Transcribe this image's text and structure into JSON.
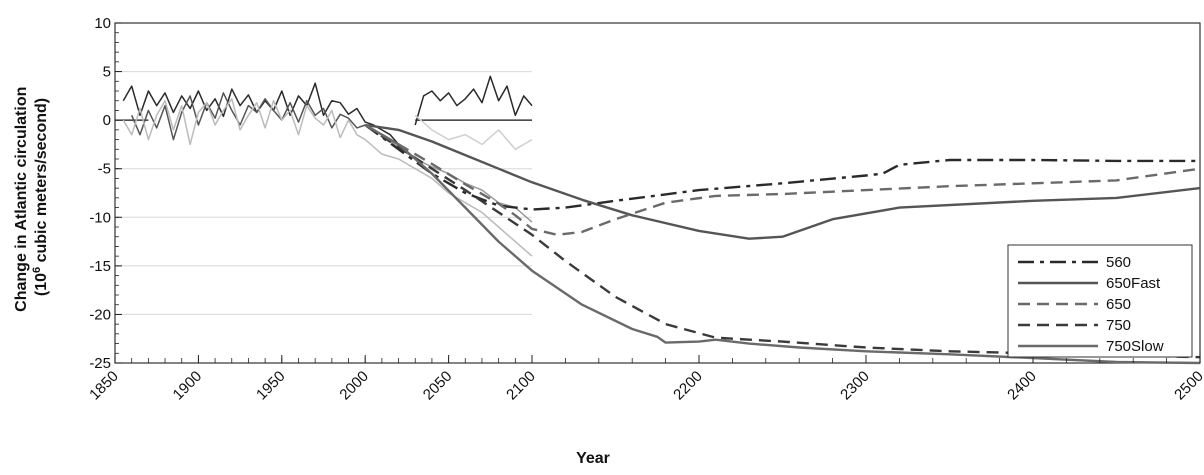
{
  "chart_data": {
    "type": "line",
    "title": "",
    "xlabel": "Year",
    "ylabel_line1": "Change in Atlantic circulation",
    "ylabel_line2": "(10",
    "ylabel_sup": "6",
    "ylabel_line2_rest": " cubic meters/second)",
    "xlim": [
      1850,
      2500
    ],
    "ylim": [
      -25,
      10
    ],
    "x_axis_breakpoint": {
      "from": 2100,
      "note": "x axis is compressed after 2100"
    },
    "x_ticks": [
      "1850",
      "1900",
      "1950",
      "2000",
      "2050",
      "2100",
      "2200",
      "2300",
      "2400",
      "2500"
    ],
    "y_ticks": [
      "10",
      "5",
      "0",
      "-5",
      "-10",
      "-15",
      "-20",
      "-25"
    ],
    "grid": "horizontal",
    "legend_position": "right",
    "series": [
      {
        "name": "560",
        "dash": "long-dash-dot",
        "color": "#2a2a2a",
        "x": [
          2000,
          2020,
          2040,
          2060,
          2080,
          2100,
          2120,
          2150,
          2200,
          2250,
          2300,
          2310,
          2320,
          2350,
          2400,
          2450,
          2500
        ],
        "y": [
          -0.5,
          -3.0,
          -5.5,
          -7.5,
          -8.8,
          -9.2,
          -9.0,
          -8.3,
          -7.2,
          -6.5,
          -5.7,
          -5.5,
          -4.6,
          -4.1,
          -4.1,
          -4.2,
          -4.2
        ]
      },
      {
        "name": "650Fast",
        "dash": "solid",
        "color": "#555555",
        "x": [
          2000,
          2020,
          2040,
          2060,
          2080,
          2100,
          2130,
          2160,
          2200,
          2230,
          2250,
          2280,
          2320,
          2400,
          2450,
          2500
        ],
        "y": [
          -0.5,
          -1.0,
          -2.2,
          -3.6,
          -5.0,
          -6.4,
          -8.2,
          -9.8,
          -11.4,
          -12.2,
          -12.0,
          -10.2,
          -9.0,
          -8.3,
          -8.0,
          -7.0
        ]
      },
      {
        "name": "650",
        "dash": "dash",
        "color": "#6a6a6a",
        "x": [
          2000,
          2020,
          2040,
          2060,
          2080,
          2090,
          2100,
          2115,
          2130,
          2150,
          2180,
          2210,
          2250,
          2300,
          2350,
          2400,
          2450,
          2500
        ],
        "y": [
          -0.5,
          -2.5,
          -4.5,
          -6.6,
          -8.6,
          -9.8,
          -11.2,
          -11.8,
          -11.5,
          -10.2,
          -8.5,
          -7.8,
          -7.6,
          -7.2,
          -6.8,
          -6.5,
          -6.2,
          -5.0
        ]
      },
      {
        "name": "750",
        "dash": "dash",
        "color": "#3a3a3a",
        "x": [
          2000,
          2020,
          2040,
          2060,
          2080,
          2100,
          2120,
          2150,
          2180,
          2210,
          2250,
          2300,
          2350,
          2400,
          2450,
          2500
        ],
        "y": [
          -0.5,
          -2.8,
          -5.0,
          -7.2,
          -9.5,
          -11.8,
          -14.5,
          -18.2,
          -21.0,
          -22.4,
          -22.8,
          -23.4,
          -23.8,
          -24.0,
          -24.2,
          -24.4
        ]
      },
      {
        "name": "750Slow",
        "dash": "solid",
        "color": "#6a6a6a",
        "x": [
          2000,
          2020,
          2040,
          2060,
          2080,
          2100,
          2130,
          2160,
          2175,
          2180,
          2200,
          2210,
          2230,
          2260,
          2300,
          2350,
          2400,
          2450,
          2500
        ],
        "y": [
          -0.5,
          -2.5,
          -5.5,
          -9.0,
          -12.5,
          -15.5,
          -19.0,
          -21.5,
          -22.3,
          -22.9,
          -22.8,
          -22.6,
          -23.0,
          -23.4,
          -23.8,
          -24.1,
          -24.5,
          -24.9,
          -25.0
        ]
      }
    ],
    "observed_series": [
      {
        "color": "#2a2a2a",
        "x": [
          1855,
          1860,
          1865,
          1870,
          1875,
          1880,
          1885,
          1890,
          1895,
          1900,
          1905,
          1910,
          1915,
          1920,
          1925,
          1930,
          1935,
          1940,
          1945,
          1950,
          1955,
          1960,
          1965,
          1970,
          1975,
          1980,
          1985,
          1990,
          1995,
          2000,
          2005,
          2010,
          2015,
          2020
        ],
        "y": [
          2.0,
          3.5,
          0.5,
          3.0,
          1.5,
          2.8,
          0.8,
          2.5,
          1.2,
          3.0,
          1.0,
          2.2,
          0.4,
          3.2,
          1.5,
          2.6,
          0.8,
          2.0,
          1.0,
          3.0,
          0.5,
          2.5,
          1.5,
          3.8,
          0.5,
          2.0,
          1.8,
          0.6,
          1.2,
          -0.2,
          -0.5,
          -1.0,
          -1.5,
          -2.5
        ]
      },
      {
        "color": "#555555",
        "x": [
          1860,
          1865,
          1870,
          1875,
          1880,
          1885,
          1890,
          1895,
          1900,
          1905,
          1910,
          1915,
          1920,
          1925,
          1930,
          1935,
          1940,
          1945,
          1950,
          1955,
          1960,
          1965,
          1970,
          1975,
          1980,
          1985,
          1990,
          1995,
          2000
        ],
        "y": [
          0.5,
          -1.5,
          1.0,
          -0.8,
          1.5,
          -2.0,
          0.8,
          2.5,
          -0.5,
          1.8,
          0.2,
          2.8,
          1.0,
          -0.5,
          1.5,
          0.8,
          2.2,
          1.0,
          0.0,
          1.8,
          -0.2,
          2.0,
          0.5,
          1.2,
          -0.8,
          0.6,
          0.2,
          -0.8,
          -0.5
        ]
      },
      {
        "color": "#bbbbbb",
        "x": [
          1855,
          1860,
          1865,
          1870,
          1875,
          1880,
          1885,
          1890,
          1895,
          1900,
          1905,
          1910,
          1915,
          1920,
          1925,
          1930,
          1935,
          1940,
          1945,
          1950,
          1955,
          1960,
          1965,
          1970,
          1975,
          1980,
          1985,
          1990,
          1995,
          2000,
          2010,
          2020,
          2030,
          2040,
          2050,
          2060,
          2070,
          2080,
          2090,
          2100
        ],
        "y": [
          0.0,
          -1.5,
          1.2,
          -2.0,
          0.5,
          2.0,
          -1.0,
          1.5,
          -2.5,
          0.8,
          1.8,
          -0.5,
          1.0,
          2.2,
          -1.0,
          0.5,
          1.8,
          -0.8,
          2.0,
          0.0,
          1.0,
          -1.5,
          1.5,
          0.2,
          -0.5,
          1.0,
          -1.8,
          0.0,
          -1.5,
          -2.0,
          -3.5,
          -4.0,
          -5.0,
          -6.0,
          -7.5,
          -8.5,
          -9.5,
          -11.0,
          -12.5,
          -14.0
        ]
      },
      {
        "color": "#2a2a2a",
        "x": [
          2030,
          2035,
          2040,
          2045,
          2050,
          2055,
          2060,
          2065,
          2070,
          2075,
          2080,
          2085,
          2090,
          2095,
          2100
        ],
        "y": [
          -0.5,
          2.5,
          3.0,
          2.0,
          2.8,
          1.5,
          2.2,
          3.2,
          1.8,
          4.5,
          2.0,
          3.5,
          0.5,
          2.5,
          1.5
        ]
      },
      {
        "color": "#999999",
        "x": [
          2000,
          2010,
          2020,
          2030,
          2040,
          2050,
          2060,
          2070,
          2080,
          2090,
          2100
        ],
        "y": [
          -0.5,
          -1.5,
          -2.8,
          -4.0,
          -4.8,
          -5.5,
          -6.5,
          -7.2,
          -8.5,
          -9.0,
          -10.5
        ]
      },
      {
        "color": "#cfcfcf",
        "x": [
          2030,
          2040,
          2050,
          2060,
          2070,
          2080,
          2090,
          2100
        ],
        "y": [
          0.5,
          -1.0,
          -2.0,
          -1.5,
          -2.5,
          -1.0,
          -3.0,
          -2.0
        ]
      }
    ]
  }
}
